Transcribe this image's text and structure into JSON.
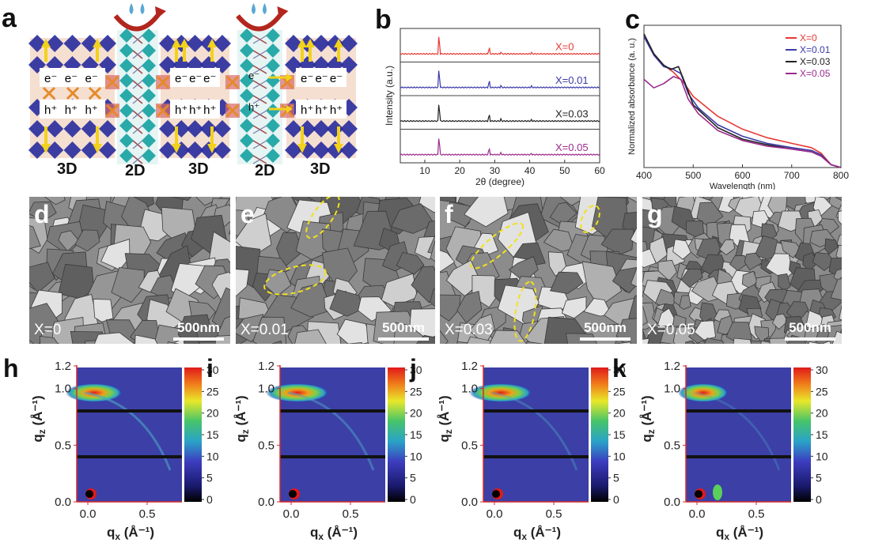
{
  "panels": {
    "a": {
      "label": "a",
      "layers": [
        "3D",
        "2D",
        "3D",
        "2D",
        "3D"
      ],
      "carrier_e": [
        "e⁻",
        "e⁻",
        "e⁻"
      ],
      "carrier_h": [
        "h⁺",
        "h⁺",
        "h⁺"
      ],
      "colors": {
        "octahedra": "#2b2f9e",
        "octa_2d": "#2aa9a9",
        "arrow": "#f2d21a",
        "cross": "#e58a2a",
        "curve": "#b3261e"
      }
    },
    "b": {
      "label": "b",
      "ylabel": "Intensity (a.u.)",
      "xlabel": "2θ (degree)",
      "xticks": [
        "10",
        "20",
        "30",
        "40",
        "50",
        "60"
      ],
      "series": [
        {
          "name": "X=0",
          "color": "#e53935"
        },
        {
          "name": "X=0.01",
          "color": "#3a3aa8"
        },
        {
          "name": "X=0.03",
          "color": "#222222"
        },
        {
          "name": "X=0.05",
          "color": "#9c2a8c"
        }
      ]
    },
    "c": {
      "label": "c",
      "ylabel": "Normalized absorbance (a. u.)",
      "xlabel": "Wavelength (nm)",
      "xticks": [
        "400",
        "500",
        "600",
        "700",
        "800"
      ]
    },
    "sem": [
      {
        "label": "d",
        "x": "X=0",
        "scale": "500nm"
      },
      {
        "label": "e",
        "x": "X=0.01",
        "scale": "500nm"
      },
      {
        "label": "f",
        "x": "X=0.03",
        "scale": "500nm"
      },
      {
        "label": "g",
        "x": "X=0.05",
        "scale": "500nm"
      }
    ],
    "giwaxs": [
      {
        "label": "h"
      },
      {
        "label": "i"
      },
      {
        "label": "j"
      },
      {
        "label": "k"
      }
    ],
    "giwaxs_axes": {
      "yticks": [
        "1.2",
        "1.0",
        "0.5",
        "0.0"
      ],
      "xticks": [
        "0.0",
        "0.5"
      ],
      "ylabel": "q",
      "ylabel_sub": "z",
      "xlabel": "q",
      "xlabel_sub": "x",
      "unit": " (Å⁻¹)",
      "cbar_ticks": [
        "30",
        "25",
        "20",
        "15",
        "10",
        "5",
        "0"
      ]
    }
  },
  "chart_data": [
    {
      "type": "line",
      "panel": "b",
      "xlabel": "2θ (degree)",
      "ylabel": "Intensity (a.u.)",
      "xlim": [
        3,
        60
      ],
      "series": [
        {
          "name": "X=0",
          "peaks": [
            [
              14.1,
              1.0
            ],
            [
              28.4,
              0.35
            ],
            [
              31.8,
              0.08
            ],
            [
              40.5,
              0.05
            ]
          ]
        },
        {
          "name": "X=0.01",
          "peaks": [
            [
              14.1,
              1.0
            ],
            [
              28.4,
              0.35
            ],
            [
              31.8,
              0.08
            ],
            [
              40.5,
              0.05
            ]
          ]
        },
        {
          "name": "X=0.03",
          "peaks": [
            [
              14.1,
              1.0
            ],
            [
              28.4,
              0.35
            ],
            [
              31.8,
              0.08
            ],
            [
              40.5,
              0.05
            ]
          ]
        },
        {
          "name": "X=0.05",
          "peaks": [
            [
              14.1,
              1.0
            ],
            [
              28.4,
              0.35
            ],
            [
              31.8,
              0.08
            ],
            [
              40.5,
              0.05
            ]
          ]
        }
      ]
    },
    {
      "type": "line",
      "panel": "c",
      "xlabel": "Wavelength (nm)",
      "ylabel": "Normalized absorbance (a. u.)",
      "xlim": [
        400,
        800
      ],
      "series": [
        {
          "name": "X=0",
          "x": [
            400,
            420,
            440,
            460,
            480,
            500,
            550,
            600,
            650,
            700,
            740,
            760,
            780,
            800
          ],
          "y": [
            0.92,
            0.8,
            0.72,
            0.67,
            0.6,
            0.5,
            0.36,
            0.27,
            0.21,
            0.17,
            0.14,
            0.1,
            0.02,
            0.0
          ]
        },
        {
          "name": "X=0.01",
          "x": [
            400,
            420,
            440,
            460,
            475,
            490,
            510,
            550,
            600,
            650,
            700,
            740,
            760,
            780,
            800
          ],
          "y": [
            0.92,
            0.79,
            0.71,
            0.69,
            0.66,
            0.52,
            0.42,
            0.3,
            0.22,
            0.17,
            0.14,
            0.12,
            0.09,
            0.02,
            0.0
          ]
        },
        {
          "name": "X=0.03",
          "x": [
            400,
            420,
            440,
            455,
            470,
            485,
            500,
            550,
            600,
            650,
            700,
            740,
            760,
            780,
            800
          ],
          "y": [
            0.94,
            0.8,
            0.72,
            0.69,
            0.71,
            0.58,
            0.44,
            0.28,
            0.2,
            0.16,
            0.13,
            0.11,
            0.08,
            0.02,
            0.0
          ]
        },
        {
          "name": "X=0.05",
          "x": [
            400,
            420,
            440,
            460,
            475,
            490,
            510,
            550,
            600,
            650,
            700,
            740,
            760,
            780,
            800
          ],
          "y": [
            0.62,
            0.56,
            0.59,
            0.64,
            0.62,
            0.48,
            0.38,
            0.26,
            0.19,
            0.15,
            0.13,
            0.11,
            0.08,
            0.02,
            0.0
          ]
        }
      ]
    }
  ]
}
